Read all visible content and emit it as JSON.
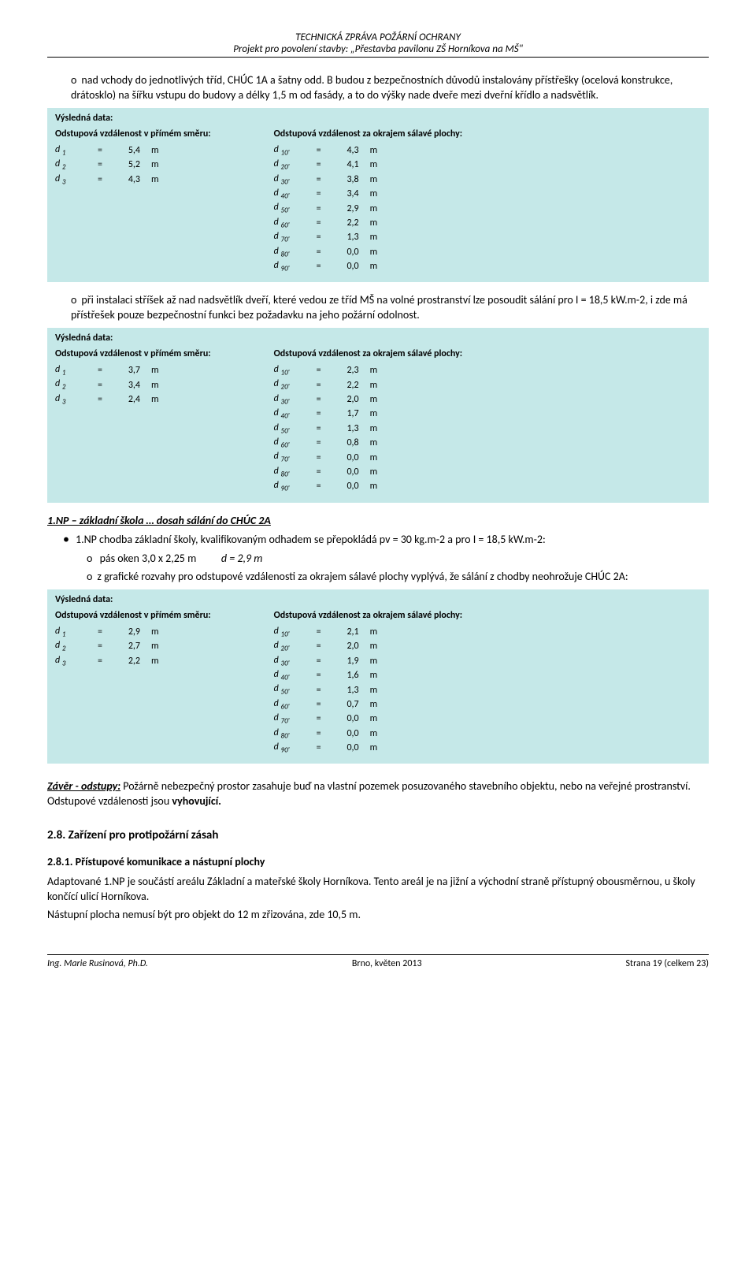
{
  "header": {
    "line1": "TECHNICKÁ ZPRÁVA POŽÁRNÍ OCHRANY",
    "line2": "Projekt pro povolení stavby: „Přestavba pavilonu ZŠ Horníkova na MŠ\""
  },
  "para1": "nad vchody do jednotlivých tříd, CHÚC 1A a šatny odd. B budou z bezpečnostních důvodů instalovány přístřešky (ocelová konstrukce, drátosklo) na šířku vstupu do budovy a délky 1,5 m od fasády, a to do výšky nade dveře mezi dveřní křídlo a nadsvětlík.",
  "table1": {
    "vysledna": "Výsledná data:",
    "leftHead": "Odstupová vzdálenost v přímém směru:",
    "rightHead": "Odstupová vzdálenost za okrajem sálavé plochy:",
    "left": [
      {
        "l": "d ",
        "s": "1",
        "v": "5,4"
      },
      {
        "l": "d ",
        "s": "2",
        "v": "5,2"
      },
      {
        "l": "d ",
        "s": "3",
        "v": "4,3"
      }
    ],
    "right": [
      {
        "l": "d ",
        "s": "10'",
        "v": "4,3"
      },
      {
        "l": "d ",
        "s": "20'",
        "v": "4,1"
      },
      {
        "l": "d ",
        "s": "30'",
        "v": "3,8"
      },
      {
        "l": "d ",
        "s": "40'",
        "v": "3,4"
      },
      {
        "l": "d ",
        "s": "50'",
        "v": "2,9"
      },
      {
        "l": "d ",
        "s": "60'",
        "v": "2,2"
      },
      {
        "l": "d ",
        "s": "70'",
        "v": "1,3"
      },
      {
        "l": "d ",
        "s": "80'",
        "v": "0,0"
      },
      {
        "l": "d ",
        "s": "90'",
        "v": "0,0"
      }
    ]
  },
  "para2": "při instalaci stříšek až nad nadsvětlík dveří, které vedou ze tříd MŠ na volné prostranství lze posoudit sálání pro I = 18,5 kW.m-2, i zde má přístřešek pouze bezpečnostní funkci bez požadavku na jeho požární odolnost.",
  "table2": {
    "vysledna": "Výsledná data:",
    "leftHead": "Odstupová vzdálenost v přímém směru:",
    "rightHead": "Odstupová vzdálenost za okrajem sálavé plochy:",
    "left": [
      {
        "l": "d ",
        "s": "1",
        "v": "3,7"
      },
      {
        "l": "d ",
        "s": "2",
        "v": "3,4"
      },
      {
        "l": "d ",
        "s": "3",
        "v": "2,4"
      }
    ],
    "right": [
      {
        "l": "d ",
        "s": "10'",
        "v": "2,3"
      },
      {
        "l": "d ",
        "s": "20'",
        "v": "2,2"
      },
      {
        "l": "d ",
        "s": "30'",
        "v": "2,0"
      },
      {
        "l": "d ",
        "s": "40'",
        "v": "1,7"
      },
      {
        "l": "d ",
        "s": "50'",
        "v": "1,3"
      },
      {
        "l": "d ",
        "s": "60'",
        "v": "0,8"
      },
      {
        "l": "d ",
        "s": "70'",
        "v": "0,0"
      },
      {
        "l": "d ",
        "s": "80'",
        "v": "0,0"
      },
      {
        "l": "d ",
        "s": "90'",
        "v": "0,0"
      }
    ]
  },
  "section2": {
    "title": "1.NP – základní škola … dosah sálání do CHÚC 2A",
    "b1": "1.NP chodba základní školy, kvalifikovaným odhadem se přepokládá pv = 30 kg.m-2 a pro I = 18,5 kW.m-2:",
    "b2a": "pás oken 3,0 x 2,25 m",
    "b2b": "d = 2,9 m",
    "b3": "z grafické rozvahy pro odstupové vzdálenosti za okrajem sálavé plochy vyplývá, že sálání z chodby neohrožuje CHÚC 2A:"
  },
  "table3": {
    "vysledna": "Výsledná data:",
    "leftHead": "Odstupová vzdálenost v přímém směru:",
    "rightHead": "Odstupová vzdálenost za okrajem sálavé plochy:",
    "left": [
      {
        "l": "d ",
        "s": "1",
        "v": "2,9"
      },
      {
        "l": "d ",
        "s": "2",
        "v": "2,7"
      },
      {
        "l": "d ",
        "s": "3",
        "v": "2,2"
      }
    ],
    "right": [
      {
        "l": "d ",
        "s": "10'",
        "v": "2,1"
      },
      {
        "l": "d ",
        "s": "20'",
        "v": "2,0"
      },
      {
        "l": "d ",
        "s": "30'",
        "v": "1,9"
      },
      {
        "l": "d ",
        "s": "40'",
        "v": "1,6"
      },
      {
        "l": "d ",
        "s": "50'",
        "v": "1,3"
      },
      {
        "l": "d ",
        "s": "60'",
        "v": "0,7"
      },
      {
        "l": "d ",
        "s": "70'",
        "v": "0,0"
      },
      {
        "l": "d ",
        "s": "80'",
        "v": "0,0"
      },
      {
        "l": "d ",
        "s": "90'",
        "v": "0,0"
      }
    ]
  },
  "conclusion": {
    "label": "Závěr - odstupy:",
    "text1": " Požárně nebezpečný prostor zasahuje buď na vlastní pozemek posuzovaného stavebního objektu, nebo na veřejné prostranství. Odstupové vzdálenosti jsou ",
    "text2": "vyhovující."
  },
  "h28": "2.8. Zařízení pro protipožární zásah",
  "h281": "2.8.1. Přístupové komunikace a nástupní plochy",
  "para3": "Adaptované 1.NP je součástí areálu Základní a mateřské školy Horníkova. Tento areál je na jižní a východní straně přístupný obousměrnou, u školy končící ulicí Horníkova.",
  "para4": "Nástupní plocha nemusí být pro objekt do 12 m zřizována, zde 10,5 m.",
  "footer": {
    "left": "Ing. Marie Rusinová, Ph.D.",
    "center": "Brno, květen 2013",
    "right": "Strana 19 (celkem 23)"
  },
  "style": {
    "tableBg": "#c5e8e8"
  }
}
